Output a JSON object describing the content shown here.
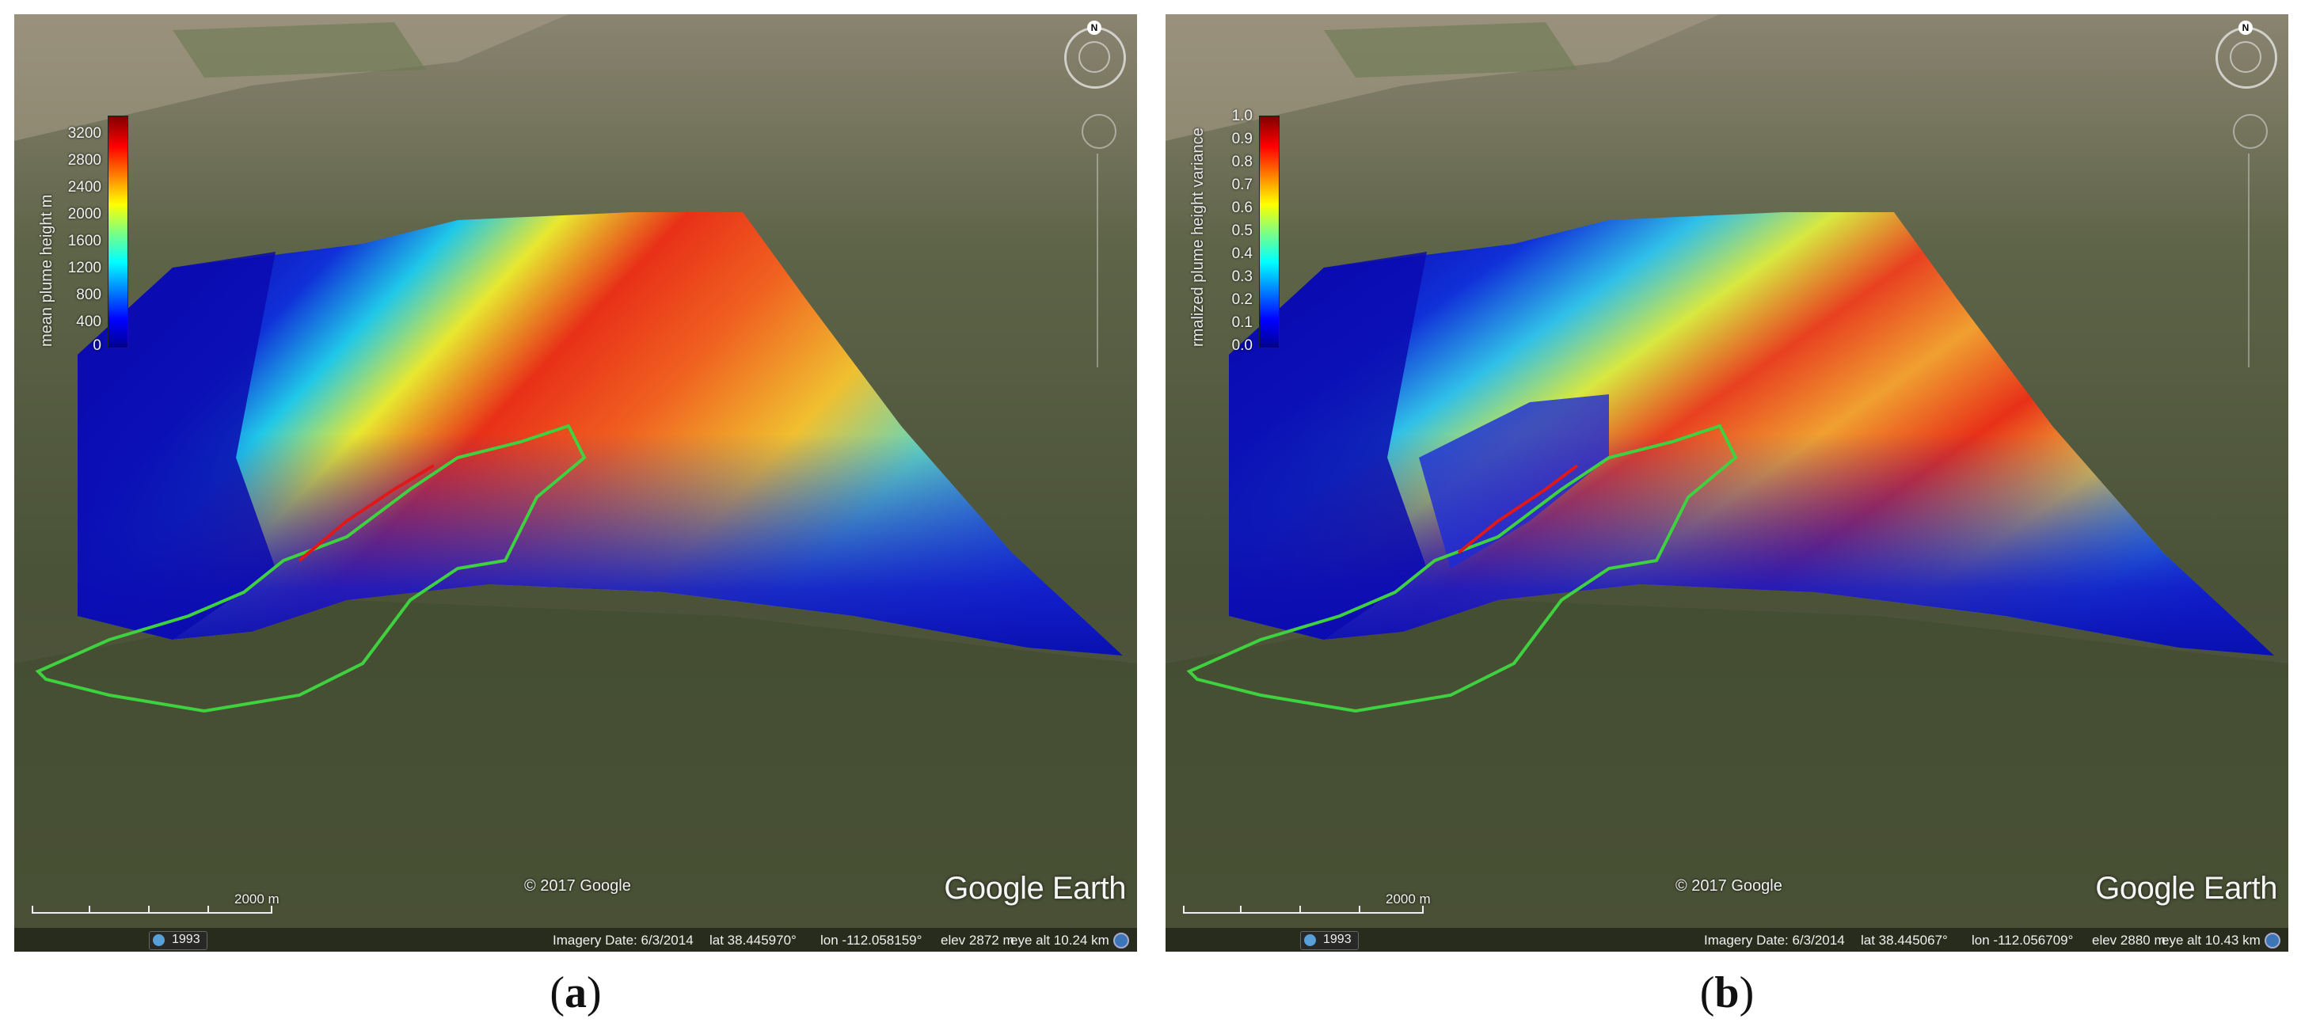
{
  "panels": [
    {
      "caption_letter": "a",
      "colorbar": {
        "title": "mean plume height m",
        "ticks": [
          "3200",
          "2800",
          "2400",
          "2000",
          "1600",
          "1200",
          "800",
          "400",
          "0"
        ]
      },
      "copyright": "© 2017 Google",
      "logo": "Google Earth",
      "scale_label": "2000 m",
      "year": "1993",
      "status": {
        "imagery_date": "Imagery Date: 6/3/2014",
        "lat": "lat   38.445970°",
        "lon": "lon  -112.058159°",
        "elev": "elev   2872 m",
        "eye_alt": "eye alt   10.24 km"
      },
      "compass_letter": "N"
    },
    {
      "caption_letter": "b",
      "colorbar": {
        "title": "rmalized plume height variance",
        "ticks": [
          "1.0",
          "0.9",
          "0.8",
          "0.7",
          "0.6",
          "0.5",
          "0.4",
          "0.3",
          "0.2",
          "0.1",
          "0.0"
        ]
      },
      "copyright": "© 2017 Google",
      "logo": "Google Earth",
      "scale_label": "2000 m",
      "year": "1993",
      "status": {
        "imagery_date": "Imagery Date: 6/3/2014",
        "lat": "lat   38.445067°",
        "lon": "lon  -112.056709°",
        "elev": "elev   2880 m",
        "eye_alt": "eye alt   10.43 km"
      },
      "compass_letter": "N"
    }
  ],
  "colors": {
    "jet": [
      "#00008f",
      "#0000ff",
      "#0080ff",
      "#00ffff",
      "#80ff80",
      "#ffff00",
      "#ff8000",
      "#ff0000",
      "#800000"
    ],
    "fire_perimeter": "#3fd13f",
    "fire_line": "#e01818"
  }
}
